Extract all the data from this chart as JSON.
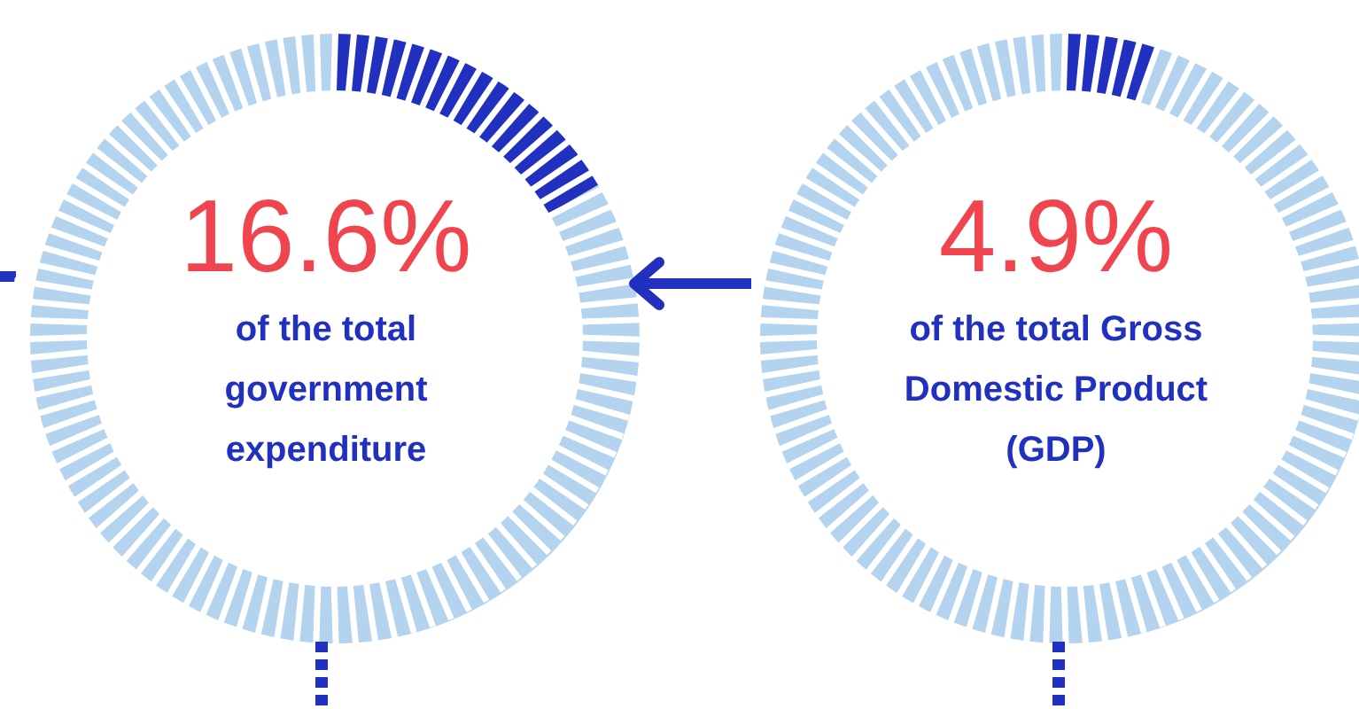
{
  "chart_data": [
    {
      "type": "donut",
      "title": "of the total government expenditure",
      "categories": [
        null,
        null
      ],
      "values": [
        16.6,
        83.4
      ],
      "colors": [
        "#2230c0",
        "#b3d3ee"
      ],
      "annotations": [
        "16.6%"
      ]
    },
    {
      "type": "donut",
      "title": "of the total Gross Domestic Product (GDP)",
      "categories": [
        null,
        null
      ],
      "values": [
        4.9,
        95.1
      ],
      "colors": [
        "#2230c0",
        "#b3d3ee"
      ],
      "annotations": [
        "4.9%"
      ]
    }
  ]
}
